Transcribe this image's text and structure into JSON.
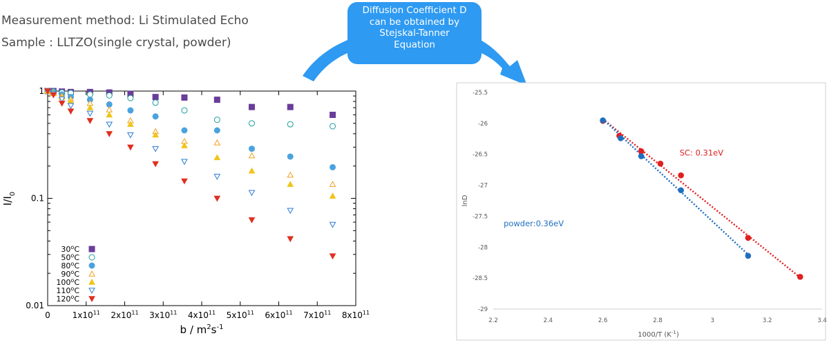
{
  "header": {
    "method_line": "Measurement method: Li Stimulated Echo",
    "sample_line": "Sample : LLTZO(single crystal, powder)"
  },
  "callout": {
    "lines": [
      "Diffusion Coefficient D",
      "can be obtained by",
      "Stejskal-Tanner",
      "Equation"
    ]
  },
  "colors": {
    "arrow": "#2e9af2",
    "callout_bg": "#2e9af2"
  },
  "chart_data": [
    {
      "type": "scatter",
      "title": "",
      "ylabel": "I/I0",
      "xlabel": "b / m2s-1",
      "xlabel_parts": {
        "pre": "b / m",
        "sup1": "2",
        "mid": "s",
        "sup2": "-1"
      },
      "ylabel_parts": {
        "pre": "I/I",
        "sub": "0"
      },
      "x_scale": "linear",
      "y_scale": "log",
      "xlim": [
        0,
        800000000000.0
      ],
      "ylim": [
        0.01,
        1
      ],
      "xtick_labels": [
        {
          "x": 0,
          "mant": "0",
          "exp": ""
        },
        {
          "x": 100000000000.0,
          "mant": "1x10",
          "exp": "11"
        },
        {
          "x": 200000000000.0,
          "mant": "2x10",
          "exp": "11"
        },
        {
          "x": 300000000000.0,
          "mant": "3x10",
          "exp": "11"
        },
        {
          "x": 400000000000.0,
          "mant": "4x10",
          "exp": "11"
        },
        {
          "x": 500000000000.0,
          "mant": "5x10",
          "exp": "11"
        },
        {
          "x": 600000000000.0,
          "mant": "6x10",
          "exp": "11"
        },
        {
          "x": 700000000000.0,
          "mant": "7x10",
          "exp": "11"
        },
        {
          "x": 800000000000.0,
          "mant": "8x10",
          "exp": "11"
        }
      ],
      "ytick_labels": [
        {
          "y": 1,
          "label": "1"
        },
        {
          "y": 0.1,
          "label": "0.1"
        },
        {
          "y": 0.01,
          "label": "0.01"
        }
      ],
      "legend_position": "bottom-left",
      "x": [
        0,
        15000000000.0,
        37000000000.0,
        60000000000.0,
        110000000000.0,
        160000000000.0,
        215000000000.0,
        280000000000.0,
        355000000000.0,
        440000000000.0,
        530000000000.0,
        630000000000.0,
        740000000000.0
      ],
      "series": [
        {
          "name": "30oC",
          "temp": "30",
          "marker": "square",
          "fill": true,
          "color": "#6a3d9a",
          "values": [
            1.0,
            1.0,
            0.99,
            0.98,
            0.98,
            0.97,
            0.94,
            0.88,
            0.87,
            0.83,
            0.71,
            0.71,
            0.6
          ]
        },
        {
          "name": "50oC",
          "temp": "50",
          "marker": "circle",
          "fill": false,
          "color": "#1a9c9c",
          "values": [
            1.0,
            0.99,
            0.97,
            0.96,
            0.93,
            0.91,
            0.86,
            0.78,
            0.66,
            0.54,
            0.5,
            0.49,
            0.47
          ]
        },
        {
          "name": "80oC",
          "temp": "80",
          "marker": "circle",
          "fill": true,
          "color": "#4aa3df",
          "values": [
            1.0,
            0.97,
            0.93,
            0.88,
            0.83,
            0.75,
            0.66,
            0.58,
            0.43,
            0.43,
            0.29,
            0.245,
            0.195
          ]
        },
        {
          "name": "90oC",
          "temp": "90",
          "marker": "triangle-up",
          "fill": false,
          "color": "#f0a020",
          "values": [
            1.0,
            0.96,
            0.9,
            0.84,
            0.77,
            0.67,
            0.53,
            0.42,
            0.34,
            0.33,
            0.25,
            0.165,
            0.135
          ]
        },
        {
          "name": "100oC",
          "temp": "100",
          "marker": "triangle-up",
          "fill": true,
          "color": "#f0c419",
          "values": [
            1.0,
            0.95,
            0.87,
            0.8,
            0.7,
            0.6,
            0.49,
            0.39,
            0.31,
            0.24,
            0.18,
            0.135,
            0.105
          ]
        },
        {
          "name": "110oC",
          "temp": "110",
          "marker": "triangle-down",
          "fill": false,
          "color": "#2b7bd6",
          "values": [
            1.0,
            0.94,
            0.84,
            0.73,
            0.62,
            0.49,
            0.39,
            0.29,
            0.22,
            0.16,
            0.113,
            0.077,
            0.057
          ]
        },
        {
          "name": "120oC",
          "temp": "120",
          "marker": "triangle-down",
          "fill": true,
          "color": "#e03020",
          "values": [
            1.0,
            0.92,
            0.77,
            0.65,
            0.53,
            0.4,
            0.3,
            0.21,
            0.145,
            0.1,
            0.063,
            0.042,
            0.029
          ]
        }
      ]
    },
    {
      "type": "scatter",
      "title": "",
      "xlabel": "1000/T (K-1)",
      "xlabel_parts": {
        "pre": "1000/T (K",
        "sup": "-1",
        "post": ")"
      },
      "ylabel": "lnD",
      "xlim": [
        2.2,
        3.4
      ],
      "ylim": [
        -29,
        -25.5
      ],
      "xticks": [
        2.2,
        2.4,
        2.6,
        2.8,
        3,
        3.2,
        3.4
      ],
      "xtick_labels": [
        "2.2",
        "2.4",
        "2.6",
        "2.8",
        "3",
        "3.2",
        "3.4"
      ],
      "yticks": [
        -25.5,
        -26,
        -26.5,
        -27,
        -27.5,
        -28,
        -28.5,
        -29
      ],
      "ytick_labels": [
        "-25.5",
        "-26",
        "-26.5",
        "-27",
        "-27.5",
        "-28",
        "-28.5",
        "-29"
      ],
      "grid": false,
      "annotations": [
        {
          "text": "SC: 0.31eV",
          "color": "#e02020",
          "x": 2.88,
          "y": -26.52
        },
        {
          "text": "powder:0.36eV",
          "color": "#1f6fbf",
          "x": 2.238,
          "y": -27.66
        }
      ],
      "series": [
        {
          "name": "SC",
          "color": "#e02020",
          "x": [
            2.6,
            2.66,
            2.74,
            2.81,
            2.885,
            3.13,
            3.32
          ],
          "y": [
            -25.96,
            -26.2,
            -26.45,
            -26.65,
            -26.84,
            -27.85,
            -28.48
          ]
        },
        {
          "name": "powder",
          "color": "#1f6fbf",
          "x": [
            2.6,
            2.665,
            2.74,
            2.885,
            3.13
          ],
          "y": [
            -25.95,
            -26.24,
            -26.53,
            -27.08,
            -28.14
          ]
        }
      ],
      "fits": [
        {
          "series": "SC",
          "x": [
            2.6,
            3.32
          ],
          "y": [
            -25.93,
            -28.49
          ],
          "style": "dotted"
        },
        {
          "series": "powder",
          "x": [
            2.6,
            3.13
          ],
          "y": [
            -25.93,
            -28.12
          ],
          "style": "dotted"
        }
      ]
    }
  ]
}
